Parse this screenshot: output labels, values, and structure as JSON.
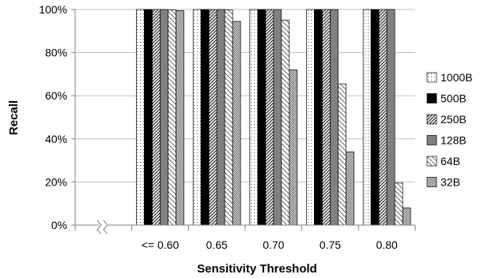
{
  "chart_data": {
    "type": "bar",
    "xlabel": "Sensitivity Threshold",
    "ylabel": "Recall",
    "ylim": [
      0,
      100
    ],
    "yticks": [
      "0%",
      "20%",
      "40%",
      "60%",
      "80%",
      "100%"
    ],
    "categories": [
      "<= 0.60",
      "0.65",
      "0.70",
      "0.75",
      "0.80"
    ],
    "series": [
      {
        "name": "1000B",
        "pattern": "dots",
        "values": [
          100,
          100,
          100,
          100,
          100
        ]
      },
      {
        "name": "500B",
        "pattern": "solid-black",
        "values": [
          100,
          100,
          100,
          100,
          100
        ]
      },
      {
        "name": "250B",
        "pattern": "diag-dense",
        "values": [
          100,
          100,
          100,
          100,
          100
        ]
      },
      {
        "name": "128B",
        "pattern": "solid-gray",
        "values": [
          100,
          100,
          100,
          100,
          100
        ]
      },
      {
        "name": "64B",
        "pattern": "diag-light",
        "values": [
          99.8,
          99.8,
          95,
          65.5,
          19.5
        ]
      },
      {
        "name": "32B",
        "pattern": "checker",
        "values": [
          99.5,
          94.5,
          72,
          34,
          8
        ]
      }
    ],
    "grid": true,
    "legend_position": "right",
    "axis_break": true
  }
}
